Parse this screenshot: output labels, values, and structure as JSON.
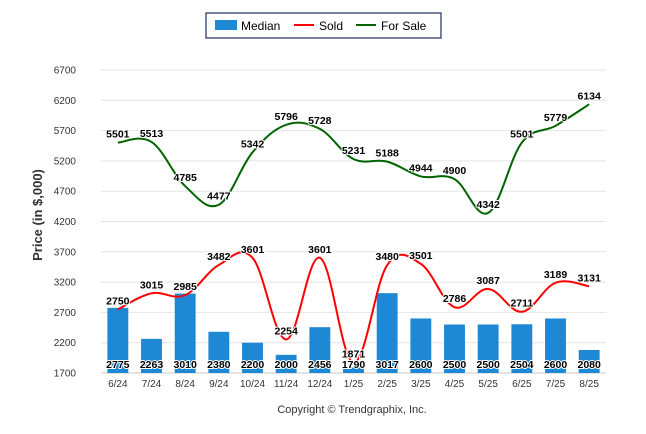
{
  "chart_data": {
    "type": "bar",
    "categories": [
      "6/24",
      "7/24",
      "8/24",
      "9/24",
      "10/24",
      "11/24",
      "12/24",
      "1/25",
      "2/25",
      "3/25",
      "4/25",
      "5/25",
      "6/25",
      "7/25",
      "8/25"
    ],
    "series": [
      {
        "name": "Median",
        "kind": "bar",
        "color": "#1f88d4",
        "values": [
          2775,
          2263,
          3010,
          2380,
          2200,
          2000,
          2456,
          1790,
          3017,
          2600,
          2500,
          2500,
          2504,
          2600,
          2080
        ]
      },
      {
        "name": "Sold",
        "kind": "line",
        "color": "#ff0000",
        "values": [
          2750,
          3015,
          2985,
          3482,
          3601,
          2254,
          3601,
          1871,
          3480,
          3501,
          2786,
          3087,
          2711,
          3189,
          3131
        ]
      },
      {
        "name": "For Sale",
        "kind": "line",
        "color": "#006400",
        "values": [
          5501,
          5513,
          4785,
          4477,
          5342,
          5796,
          5728,
          5231,
          5188,
          4944,
          4900,
          4342,
          5501,
          5779,
          6134
        ]
      }
    ],
    "y_ticks": [
      "1700",
      "2200",
      "2700",
      "3200",
      "3700",
      "4200",
      "4700",
      "5200",
      "5700",
      "6200",
      "6700"
    ],
    "ylim": [
      1700,
      6700
    ],
    "ylabel": "Price (in $,000)",
    "xlabel": "",
    "grid": true,
    "legend_placement": "top-center"
  },
  "footer": {
    "copyright": "Copyright © Trendgraphix, Inc."
  }
}
